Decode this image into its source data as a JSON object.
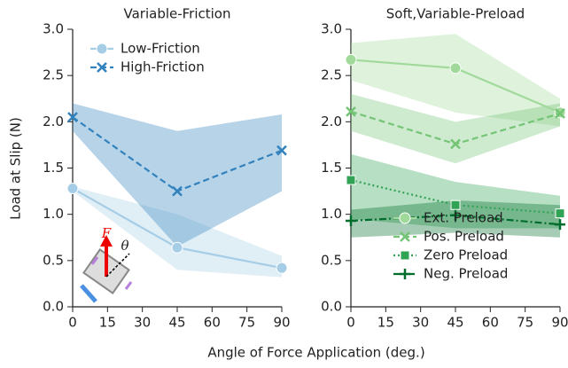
{
  "chart_data": [
    {
      "type": "line",
      "title": "Variable-Friction",
      "x": [
        0,
        45,
        90
      ],
      "xlim": [
        0,
        90
      ],
      "xticks": [
        0,
        15,
        30,
        45,
        60,
        75,
        90
      ],
      "ylim": [
        0,
        3
      ],
      "yticks": [
        {
          "value": 0,
          "label": "0.0"
        },
        {
          "value": 0.5,
          "label": "0.5"
        },
        {
          "value": 1,
          "label": "1.0"
        },
        {
          "value": 1.5,
          "label": "1.5"
        },
        {
          "value": 2,
          "label": "2.0"
        },
        {
          "value": 2.5,
          "label": "2.5"
        },
        {
          "value": 3,
          "label": "3.0"
        }
      ],
      "legend": "upper left",
      "annotations": [
        "F",
        "θ"
      ],
      "series": [
        {
          "name": "Low-Friction",
          "color": "#a6cde6",
          "dash": "solid",
          "marker": "circle",
          "values": [
            1.28,
            0.64,
            0.42
          ],
          "lower": [
            1.25,
            0.4,
            0.32
          ],
          "upper": [
            1.3,
            1.0,
            0.55
          ]
        },
        {
          "name": "High-Friction",
          "color": "#3182bd",
          "dash": "dashed",
          "marker": "x",
          "values": [
            2.05,
            1.25,
            1.69
          ],
          "lower": [
            1.9,
            0.65,
            1.25
          ],
          "upper": [
            2.2,
            1.9,
            2.08
          ]
        }
      ]
    },
    {
      "type": "line",
      "title": "Soft,Variable-Preload",
      "x": [
        0,
        45,
        90
      ],
      "xlim": [
        0,
        90
      ],
      "xticks": [
        0,
        15,
        30,
        45,
        60,
        75,
        90
      ],
      "ylim": [
        0,
        3
      ],
      "yticks": [
        {
          "value": 0,
          "label": "0.0"
        },
        {
          "value": 0.5,
          "label": "0.5"
        },
        {
          "value": 1,
          "label": "1.0"
        },
        {
          "value": 1.5,
          "label": "1.5"
        },
        {
          "value": 2,
          "label": "2.0"
        },
        {
          "value": 2.5,
          "label": "2.5"
        },
        {
          "value": 3,
          "label": "3.0"
        }
      ],
      "legend": "lower center",
      "series": [
        {
          "name": "Ext. Preload",
          "color": "#a1d99b",
          "dash": "solid",
          "marker": "circle",
          "values": [
            2.67,
            2.58,
            2.1
          ],
          "lower": [
            2.45,
            2.1,
            1.95
          ],
          "upper": [
            2.85,
            2.95,
            2.25
          ]
        },
        {
          "name": "Pos. Preload",
          "color": "#74c476",
          "dash": "dashed",
          "marker": "x",
          "values": [
            2.11,
            1.76,
            2.09
          ],
          "lower": [
            1.9,
            1.55,
            1.95
          ],
          "upper": [
            2.3,
            2.0,
            2.2
          ]
        },
        {
          "name": "Zero Preload",
          "color": "#31a354",
          "dash": "dotted",
          "marker": "square",
          "values": [
            1.37,
            1.1,
            1.01
          ],
          "lower": [
            0.95,
            0.85,
            0.85
          ],
          "upper": [
            1.65,
            1.35,
            1.2
          ]
        },
        {
          "name": "Neg. Preload",
          "color": "#006d2c",
          "dash": "dashdot",
          "marker": "plus",
          "values": [
            0.93,
            0.99,
            0.89
          ],
          "lower": [
            0.75,
            0.8,
            0.75
          ],
          "upper": [
            1.05,
            1.15,
            1.1
          ]
        }
      ]
    }
  ],
  "xlabel": "Angle of Force Application (deg.)",
  "ylabel": "Load at Slip (N)"
}
